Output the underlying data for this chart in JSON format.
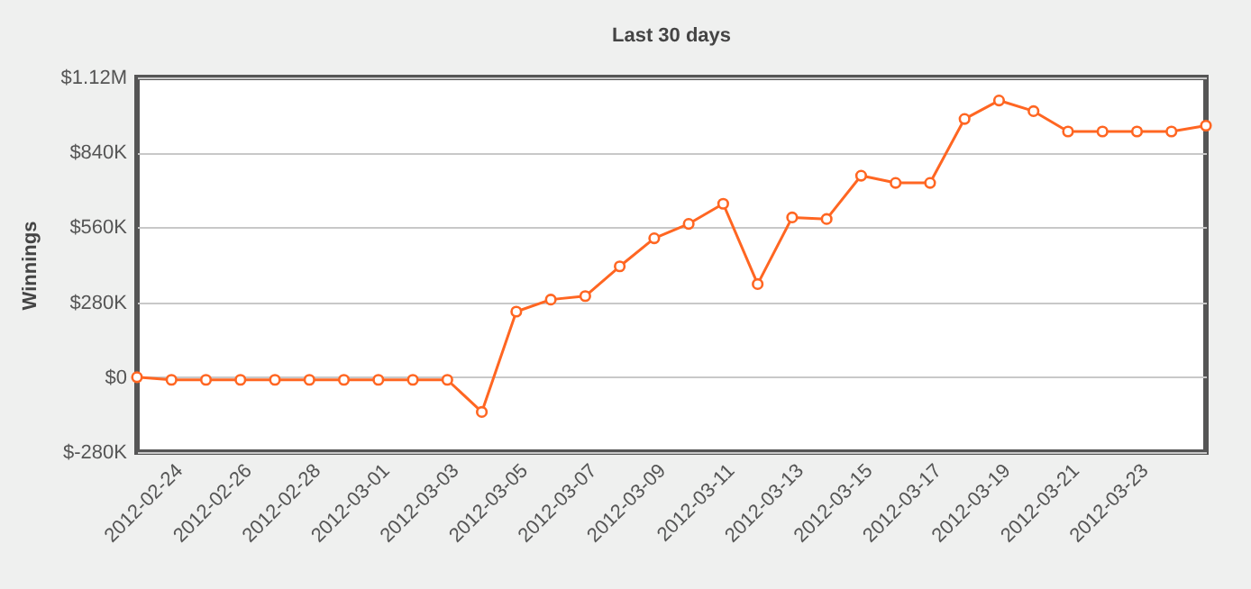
{
  "chart_data": {
    "type": "line",
    "title": "Last 30 days",
    "ylabel": "Winnings",
    "x": [
      "2012-02-23",
      "2012-02-24",
      "2012-02-25",
      "2012-02-26",
      "2012-02-27",
      "2012-02-28",
      "2012-02-29",
      "2012-03-01",
      "2012-03-02",
      "2012-03-03",
      "2012-03-04",
      "2012-03-05",
      "2012-03-06",
      "2012-03-07",
      "2012-03-08",
      "2012-03-09",
      "2012-03-10",
      "2012-03-11",
      "2012-03-12",
      "2012-03-13",
      "2012-03-14",
      "2012-03-15",
      "2012-03-16",
      "2012-03-17",
      "2012-03-18",
      "2012-03-19",
      "2012-03-20",
      "2012-03-21",
      "2012-03-22",
      "2012-03-23",
      "2012-03-24",
      "2012-03-25"
    ],
    "series": [
      {
        "color": "#ff6622",
        "values": [
          0,
          -10000,
          -10000,
          -10000,
          -10000,
          -10000,
          -10000,
          -10000,
          -10000,
          -10000,
          -130000,
          245000,
          290000,
          303000,
          414000,
          519000,
          573000,
          648000,
          348000,
          597000,
          591000,
          753000,
          726000,
          726000,
          965000,
          1034000,
          994000,
          918000,
          918000,
          918000,
          918000,
          940000
        ]
      }
    ],
    "xlim": [
      "2012-02-23",
      "2012-03-25"
    ],
    "xticks": [
      "2012-02-24",
      "2012-02-26",
      "2012-02-28",
      "2012-03-01",
      "2012-03-03",
      "2012-03-05",
      "2012-03-07",
      "2012-03-09",
      "2012-03-11",
      "2012-03-13",
      "2012-03-15",
      "2012-03-17",
      "2012-03-19",
      "2012-03-21",
      "2012-03-23"
    ],
    "ylim": [
      -280000,
      1120000
    ],
    "yticks": [
      {
        "value": -280000,
        "label": "$-280K"
      },
      {
        "value": 0,
        "label": "$0"
      },
      {
        "value": 280000,
        "label": "$280K"
      },
      {
        "value": 560000,
        "label": "$560K"
      },
      {
        "value": 840000,
        "label": "$840K"
      },
      {
        "value": 1120000,
        "label": "$1.12M"
      }
    ],
    "grid": "y",
    "marker": "circle",
    "line_style": "solid"
  }
}
